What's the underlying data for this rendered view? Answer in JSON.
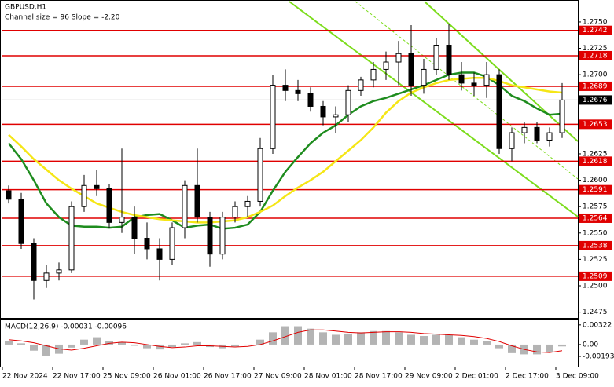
{
  "chart_data": {
    "type": "candlestick",
    "title": "GBPUSD,H1",
    "subtitle": "Channel size = 96 Slope = -2.20",
    "categories": [
      "22 Nov 2024",
      null,
      null,
      null,
      "22 Nov 17:00",
      null,
      null,
      null,
      "25 Nov 09:00",
      null,
      null,
      null,
      "26 Nov 01:00",
      null,
      null,
      null,
      "26 Nov 17:00",
      null,
      null,
      null,
      "27 Nov 09:00",
      null,
      null,
      null,
      "28 Nov 01:00",
      null,
      null,
      null,
      "28 Nov 17:00",
      null,
      null,
      null,
      "29 Nov 09:00",
      null,
      null,
      null,
      "2 Dec 01:00",
      null,
      null,
      null,
      "2 Dec 17:00",
      null,
      null,
      null,
      "3 Dec 09:00"
    ],
    "open": [
      1.259,
      1.2582,
      1.254,
      1.2505,
      1.2512,
      1.2515,
      1.2575,
      1.2595,
      1.2592,
      1.256,
      1.2565,
      1.2545,
      1.2535,
      1.2525,
      1.2555,
      1.2595,
      1.2565,
      1.253,
      1.2565,
      1.2575,
      1.258,
      1.263,
      1.269,
      1.2685,
      1.2682,
      1.267,
      1.266,
      1.2662,
      1.2685,
      1.2695,
      1.2705,
      1.2712,
      1.272,
      1.269,
      1.2705,
      1.2728,
      1.27,
      1.2692,
      1.269,
      1.27,
      1.263,
      1.2645,
      1.265,
      1.2638,
      1.2645
    ],
    "high": [
      1.2595,
      1.2588,
      1.2545,
      1.252,
      1.2522,
      1.258,
      1.2605,
      1.261,
      1.2596,
      1.263,
      1.2575,
      1.256,
      1.2545,
      1.256,
      1.26,
      1.263,
      1.257,
      1.257,
      1.258,
      1.2585,
      1.264,
      1.27,
      1.2705,
      1.2695,
      1.2688,
      1.2675,
      1.267,
      1.269,
      1.2698,
      1.2712,
      1.2722,
      1.2732,
      1.2747,
      1.2715,
      1.2735,
      1.2748,
      1.2712,
      1.2702,
      1.2712,
      1.2705,
      1.265,
      1.2655,
      1.2655,
      1.265,
      1.2692
    ],
    "low": [
      1.2578,
      1.2535,
      1.2487,
      1.2498,
      1.2505,
      1.2512,
      1.257,
      1.2585,
      1.2555,
      1.255,
      1.253,
      1.2525,
      1.2505,
      1.252,
      1.2545,
      1.256,
      1.2518,
      1.2525,
      1.256,
      1.2565,
      1.2575,
      1.2625,
      1.2675,
      1.2675,
      1.2665,
      1.2652,
      1.2645,
      1.2655,
      1.268,
      1.2688,
      1.2695,
      1.269,
      1.268,
      1.2682,
      1.27,
      1.2695,
      1.2685,
      1.268,
      1.2678,
      1.2625,
      1.2618,
      1.2635,
      1.2635,
      1.2632,
      1.264
    ],
    "close": [
      1.2582,
      1.254,
      1.2505,
      1.2512,
      1.2515,
      1.2575,
      1.2595,
      1.2592,
      1.256,
      1.2565,
      1.2545,
      1.2535,
      1.2525,
      1.2555,
      1.2595,
      1.2565,
      1.253,
      1.2565,
      1.2575,
      1.258,
      1.263,
      1.269,
      1.2685,
      1.2682,
      1.267,
      1.266,
      1.2662,
      1.2685,
      1.2695,
      1.2705,
      1.2712,
      1.272,
      1.269,
      1.2705,
      1.2728,
      1.27,
      1.2692,
      1.269,
      1.27,
      1.263,
      1.2645,
      1.265,
      1.2638,
      1.2645,
      1.2676
    ],
    "moving_averages": [
      {
        "color": "#1e8c1e",
        "values": [
          1.2635,
          1.262,
          1.26,
          1.2578,
          1.2565,
          1.2557,
          1.2556,
          1.2556,
          1.2555,
          1.2556,
          1.2565,
          1.2567,
          1.2568,
          1.2562,
          1.2555,
          1.2557,
          1.2558,
          1.2554,
          1.2555,
          1.2558,
          1.257,
          1.259,
          1.2608,
          1.2622,
          1.2635,
          1.2645,
          1.2652,
          1.2662,
          1.267,
          1.2675,
          1.2678,
          1.2682,
          1.2686,
          1.269,
          1.2695,
          1.27,
          1.2702,
          1.2702,
          1.2698,
          1.269,
          1.268,
          1.2675,
          1.2668,
          1.2662,
          1.2663
        ]
      },
      {
        "color": "#f5e616",
        "values": [
          1.2643,
          1.2632,
          1.262,
          1.261,
          1.26,
          1.2592,
          1.2585,
          1.2578,
          1.2574,
          1.257,
          1.2567,
          1.2565,
          1.2563,
          1.2562,
          1.2561,
          1.256,
          1.256,
          1.2561,
          1.2562,
          1.2565,
          1.257,
          1.2576,
          1.2585,
          1.2593,
          1.26,
          1.2608,
          1.2618,
          1.2628,
          1.2638,
          1.265,
          1.2664,
          1.2675,
          1.2683,
          1.2688,
          1.2692,
          1.2695,
          1.2696,
          1.2697,
          1.2697,
          1.2694,
          1.269,
          1.2688,
          1.2686,
          1.2684,
          1.2683
        ]
      }
    ],
    "levels": [
      1.2742,
      1.2718,
      1.2689,
      1.2653,
      1.2618,
      1.2591,
      1.2564,
      1.2538,
      1.2509
    ],
    "level_color": "#e00000",
    "last_price": 1.2676,
    "ylim": [
      1.24695,
      1.27693
    ],
    "yticks": [
      {
        "value": 1.275,
        "label": "1.2750"
      },
      1.2725,
      {
        "value": 1.27,
        "label": "1.2700"
      },
      1.2625,
      {
        "value": 1.26,
        "label": "1.2600"
      },
      1.2575,
      {
        "value": 1.255,
        "label": "1.2550"
      },
      1.2525,
      {
        "value": 1.25,
        "label": "1.2500"
      },
      1.2475
    ],
    "macd": {
      "title": "MACD(12,26,9) -0.00031 -0.00096",
      "histogram": [
        0.0006,
        0.0002,
        -0.001,
        -0.0018,
        -0.0015,
        -0.0005,
        0.0008,
        0.0012,
        0.0006,
        0.0004,
        -0.0002,
        -0.0006,
        -0.0008,
        -0.0004,
        0.0002,
        0.0004,
        -0.0004,
        -0.0006,
        -0.0003,
        0.0,
        0.0008,
        0.002,
        0.003,
        0.003,
        0.0026,
        0.002,
        0.0016,
        0.0018,
        0.002,
        0.0022,
        0.0022,
        0.002,
        0.0016,
        0.0014,
        0.0016,
        0.0016,
        0.0012,
        0.0008,
        0.0006,
        -0.0006,
        -0.0014,
        -0.0016,
        -0.0016,
        -0.0012,
        -0.0003
      ],
      "signal": [
        0.0008,
        0.0006,
        0.0003,
        -0.0002,
        -0.0007,
        -0.0009,
        -0.0006,
        -0.0002,
        0.0002,
        0.0004,
        0.0003,
        0.0,
        -0.0003,
        -0.0005,
        -0.0004,
        -0.0002,
        -0.0002,
        -0.0003,
        -0.0004,
        -0.0003,
        0.0,
        0.0006,
        0.0013,
        0.002,
        0.0024,
        0.0024,
        0.0022,
        0.002,
        0.0019,
        0.002,
        0.0021,
        0.0021,
        0.002,
        0.0018,
        0.0017,
        0.0016,
        0.0015,
        0.0013,
        0.001,
        0.0005,
        -0.0002,
        -0.0008,
        -0.0012,
        -0.0013,
        -0.001
      ],
      "histogram_color": "#b4b4b4",
      "signal_color": "#e00000",
      "ylim": [
        -0.00347,
        0.00384
      ],
      "yticks": [
        0.00322,
        {
          "value": 0,
          "label": "0.00"
        },
        -0.00193
      ]
    }
  }
}
